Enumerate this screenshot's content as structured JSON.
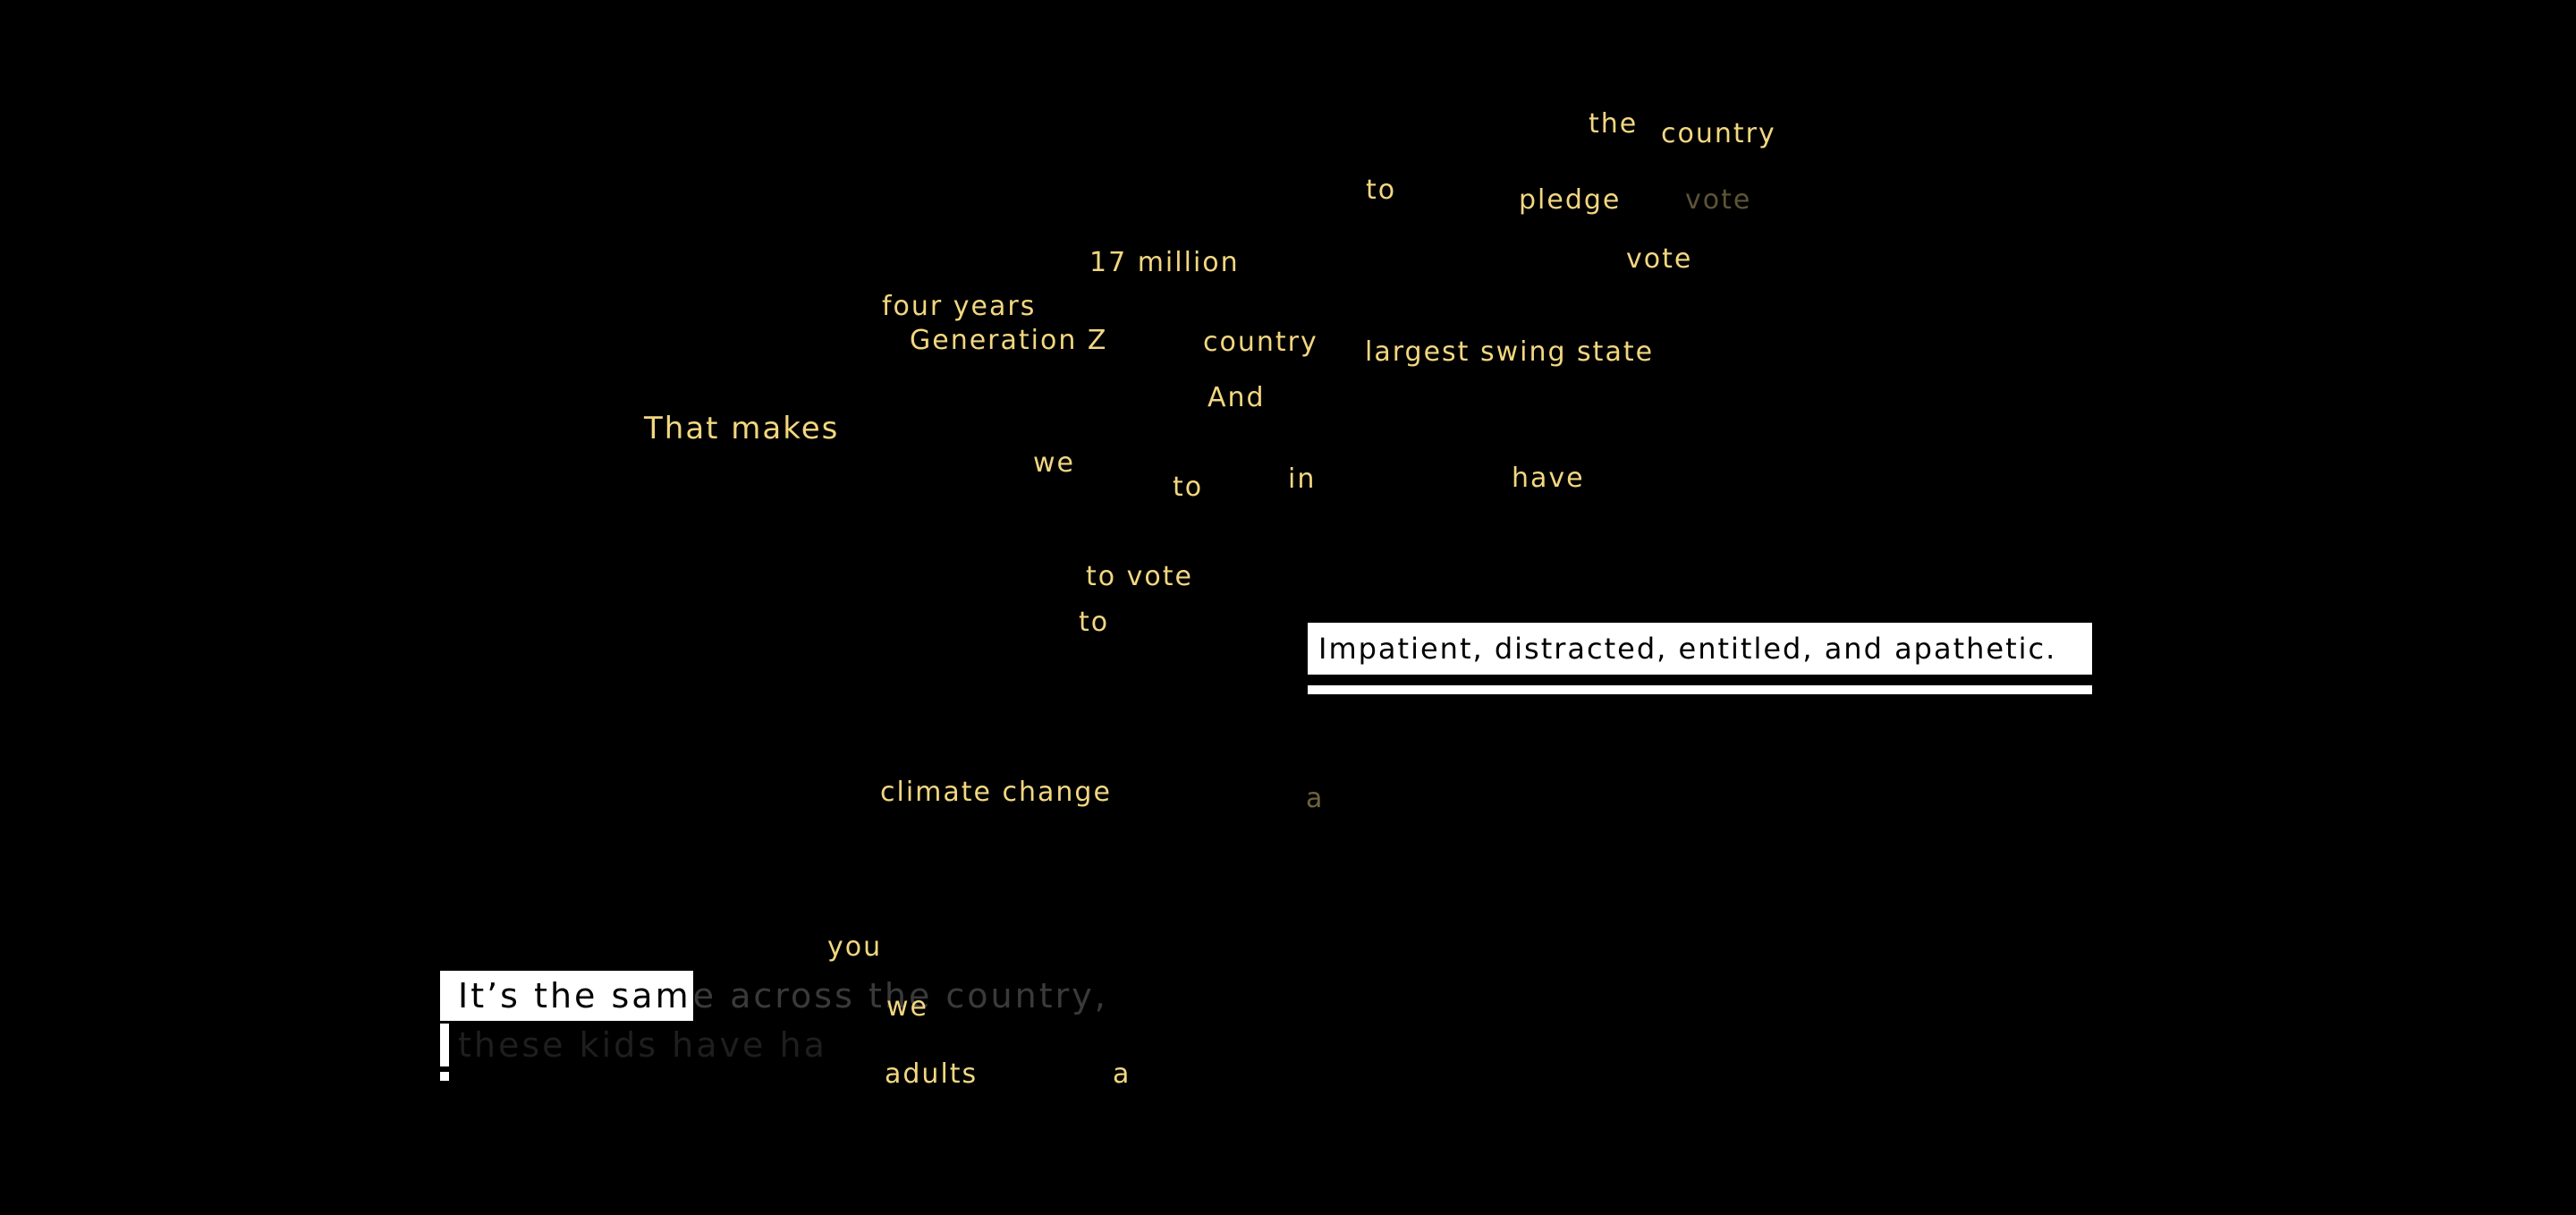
{
  "scattered_words": {
    "the": "the",
    "country_top": "country",
    "to_1": "to",
    "pledge": "pledge",
    "vote_faded": "vote",
    "seventeen_million": "17 million",
    "vote": "vote",
    "four_years": "four years",
    "generation_z": "Generation Z",
    "country_mid": "country",
    "largest_swing_state": "largest swing state",
    "and": "And",
    "that_makes": "That makes",
    "we_1": "we",
    "to_2": "to",
    "in": "in",
    "have": "have",
    "to_vote": "to vote",
    "to_3": "to",
    "climate_change": "climate change",
    "a_faded": "a",
    "you": "you",
    "we_2": "we",
    "adults": "adults",
    "a": "a"
  },
  "highlight": {
    "text": "Impatient, distracted, entitled, and apathetic."
  },
  "typing": {
    "typed_text": "It’s the sam",
    "ghost_text": "e across the country,",
    "second_line_text": "these kids have ha"
  }
}
